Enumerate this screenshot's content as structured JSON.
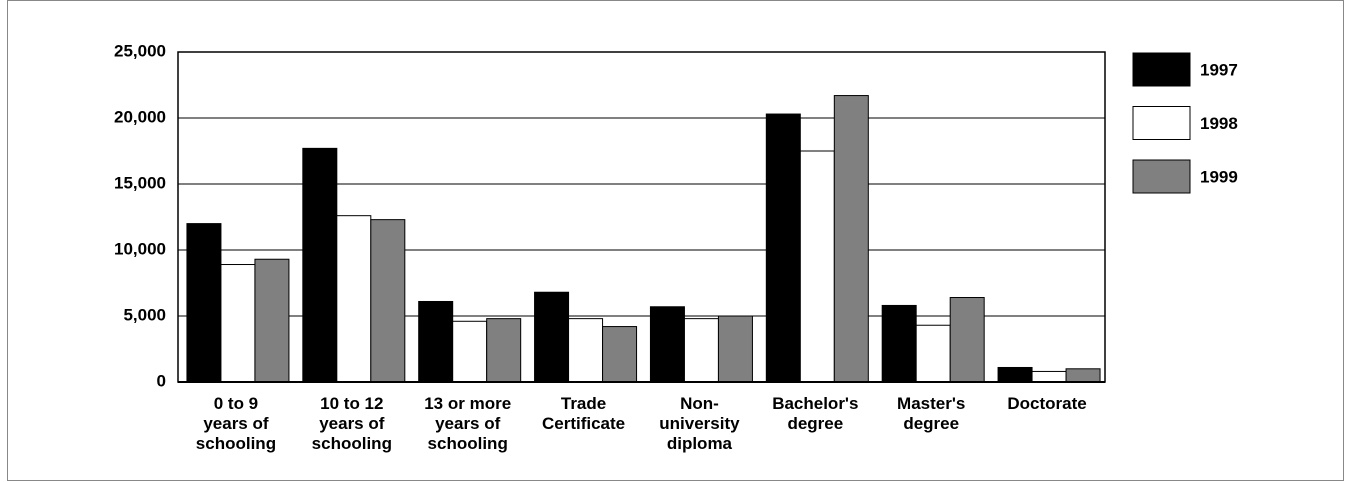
{
  "chart_data": {
    "type": "bar",
    "categories": [
      "0 to 9\nyears of\nschooling",
      "10 to 12\nyears of\nschooling",
      "13 or more\nyears of\nschooling",
      "Trade\nCertificate",
      "Non-\nuniversity\ndiploma",
      "Bachelor's\ndegree",
      "Master's\ndegree",
      "Doctorate"
    ],
    "series": [
      {
        "name": "1997",
        "color": "#000000",
        "values": [
          12000,
          17700,
          6100,
          6800,
          5700,
          20300,
          5800,
          1100
        ]
      },
      {
        "name": "1998",
        "color": "#ffffff",
        "values": [
          8900,
          12600,
          4600,
          4800,
          4800,
          17500,
          4300,
          800
        ]
      },
      {
        "name": "1999",
        "color": "#808080",
        "values": [
          9300,
          12300,
          4800,
          4200,
          5000,
          21700,
          6400,
          1000
        ]
      }
    ],
    "ylim": [
      0,
      25000
    ],
    "yticks": [
      0,
      {
        "value": 5000,
        "label": "5,000"
      },
      {
        "value": 10000,
        "label": "10,000"
      },
      {
        "value": 15000,
        "label": "15,000"
      },
      {
        "value": 20000,
        "label": "20,000"
      },
      {
        "value": 25000,
        "label": "25,000"
      }
    ],
    "grid": true
  }
}
